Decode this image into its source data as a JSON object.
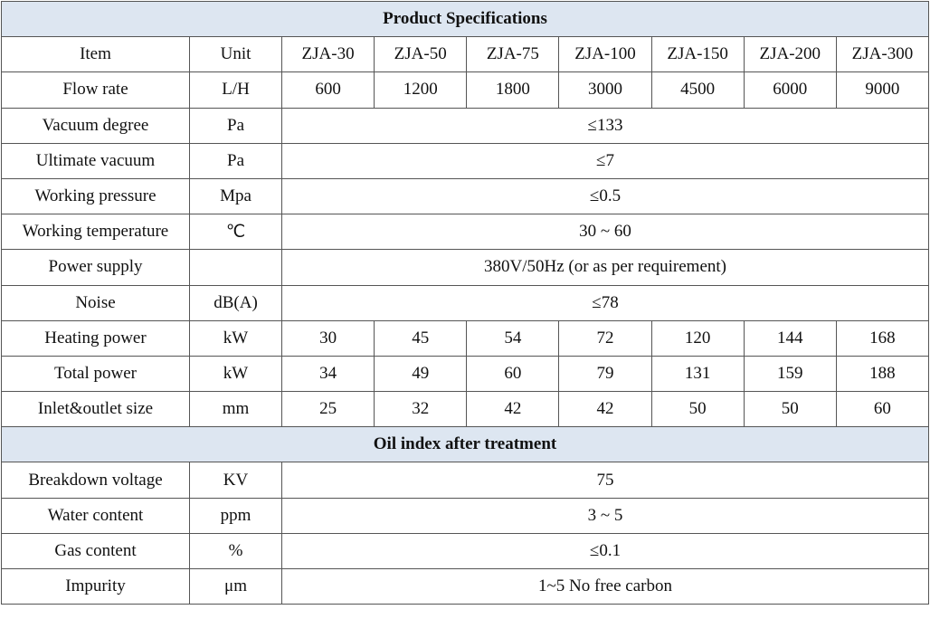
{
  "title": "Product Specifications",
  "header": [
    "Item",
    "Unit",
    "ZJA-30",
    "ZJA-50",
    "ZJA-75",
    "ZJA-100",
    "ZJA-150",
    "ZJA-200",
    "ZJA-300"
  ],
  "rows": [
    [
      "Flow rate",
      "L/H",
      "600",
      "1200",
      "1800",
      "3000",
      "4500",
      "6000",
      "9000"
    ],
    [
      "Vacuum degree",
      "Pa",
      "≤133"
    ],
    [
      "Ultimate vacuum",
      "Pa",
      "≤7"
    ],
    [
      "Working pressure",
      "Mpa",
      "≤0.5"
    ],
    [
      "Working temperature",
      "℃",
      "30 ~ 60"
    ],
    [
      "Power supply",
      null,
      "380V/50Hz (or as per requirement)"
    ],
    [
      "Noise",
      "dB(A)",
      "≤78"
    ],
    [
      "Heating power",
      "kW",
      "30",
      "45",
      "54",
      "72",
      "120",
      "144",
      "168"
    ],
    [
      "Total power",
      "kW",
      "34",
      "49",
      "60",
      "79",
      "131",
      "159",
      "188"
    ],
    [
      "Inlet&outlet size",
      "mm",
      "25",
      "32",
      "42",
      "42",
      "50",
      "50",
      "60"
    ]
  ],
  "section2_title": "Oil index after treatment",
  "rows2": [
    [
      "Breakdown voltage",
      "KV",
      "75"
    ],
    [
      "Water content",
      "ppm",
      "3 ~ 5"
    ],
    [
      "Gas content",
      "%",
      "≤0.1"
    ],
    [
      "Impurity",
      "μm",
      "1~5 No free carbon"
    ]
  ]
}
